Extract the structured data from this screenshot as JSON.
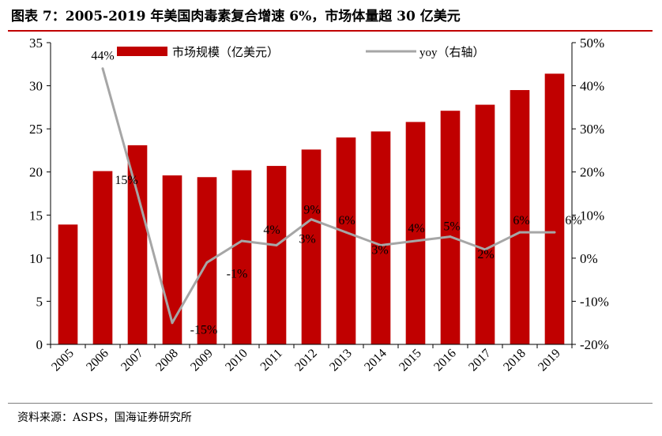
{
  "title": "图表 7：2005-2019 年美国肉毒素复合增速 6%，市场体量超 30 亿美元",
  "source": "资料来源：ASPS，国海证券研究所",
  "chart_data": {
    "type": "bar",
    "categories": [
      "2005",
      "2006",
      "2007",
      "2008",
      "2009",
      "2010",
      "2011",
      "2012",
      "2013",
      "2014",
      "2015",
      "2016",
      "2017",
      "2018",
      "2019"
    ],
    "series": [
      {
        "name": "市场规模（亿美元）",
        "type": "bar",
        "axis": "left",
        "color": "#c00000",
        "values": [
          13.9,
          20.1,
          23.1,
          19.6,
          19.4,
          20.2,
          20.7,
          22.6,
          24.0,
          24.7,
          25.8,
          27.1,
          27.8,
          29.5,
          31.4
        ]
      },
      {
        "name": "yoy（右轴）",
        "type": "line",
        "axis": "right",
        "color": "#a6a6a6",
        "values": [
          null,
          44,
          15,
          -15,
          -1,
          4,
          3,
          9,
          6,
          3,
          4,
          5,
          2,
          6,
          6
        ],
        "labels": [
          "",
          "44%",
          "15%",
          "-15%",
          "-1%",
          "4%",
          "3%",
          "9%",
          "6%",
          "3%",
          "4%",
          "5%",
          "2%",
          "6%",
          "6%"
        ]
      }
    ],
    "y_left": {
      "min": 0,
      "max": 35,
      "step": 5,
      "tick_labels": [
        "0",
        "5",
        "10",
        "15",
        "20",
        "25",
        "30",
        "35"
      ]
    },
    "y_right": {
      "min": -20,
      "max": 50,
      "step": 10,
      "tick_labels": [
        "-20%",
        "-10%",
        "0%",
        "10%",
        "20%",
        "30%",
        "40%",
        "50%"
      ]
    },
    "legend_position": "top",
    "grid": false,
    "x_tick_rotation": -45
  }
}
